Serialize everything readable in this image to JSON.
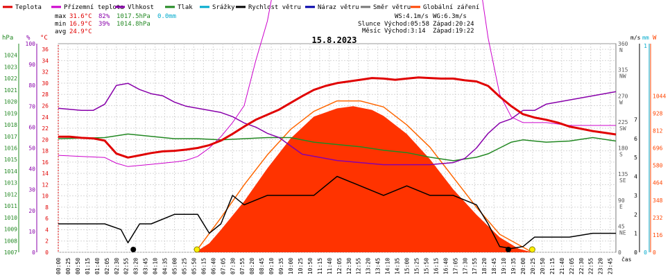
{
  "chart_data": {
    "type": "line",
    "title": "15.8.2023",
    "legend": [
      {
        "name": "Teplota",
        "color": "#e00000"
      },
      {
        "name": "Přízemní teplota",
        "color": "#cc00cc"
      },
      {
        "name": "Vlhkost",
        "color": "#8800aa"
      },
      {
        "name": "Tlak",
        "color": "#228822"
      },
      {
        "name": "Srážky",
        "color": "#00aacc"
      },
      {
        "name": "Rychlost větru",
        "color": "#000000"
      },
      {
        "name": "Náraz větru",
        "color": "#0000aa"
      },
      {
        "name": "Směr větru",
        "color": "#777777"
      },
      {
        "name": "Globální záření",
        "color": "#ff4400"
      }
    ],
    "stats": {
      "max": {
        "label": "max",
        "temp": "31.6°C",
        "hum": "82%",
        "press": "1017.5hPa",
        "rain": "0.0mm"
      },
      "min": {
        "label": "min",
        "temp": "16.9°C",
        "hum": "39%",
        "press": "1014.8hPa"
      },
      "avg": {
        "label": "avg",
        "temp": "24.9°C"
      }
    },
    "info": {
      "ws": "WS:4.1m/s",
      "wg": "WG:6.3m/s",
      "sun_label": "Slunce",
      "sunrise": "Východ:05:58",
      "sunset": "Západ:20:24",
      "moon_label": "Měsíc",
      "moonrise": "Východ:3:14",
      "moonset": "Západ:19:22"
    },
    "axes": {
      "hpa": {
        "label": "hPa",
        "range": [
          1007,
          1025
        ],
        "ticks": [
          "1024",
          "1023",
          "1022",
          "1021",
          "1020",
          "1019",
          "1018",
          "1017",
          "1016",
          "1015",
          "1014",
          "1013",
          "1012",
          "1011",
          "1010",
          "1009",
          "1008",
          "1007"
        ]
      },
      "pct": {
        "label": "%",
        "range": [
          0,
          100
        ],
        "ticks": [
          "100",
          "90",
          "80",
          "70",
          "60",
          "50",
          "40",
          "30",
          "20",
          "10",
          "0"
        ]
      },
      "temp": {
        "label": "°C",
        "range": [
          0,
          37
        ],
        "ticks": [
          "36",
          "34",
          "32",
          "30",
          "28",
          "26",
          "24",
          "22",
          "20",
          "18",
          "16",
          "14",
          "12",
          "10",
          "8",
          "6",
          "4",
          "2",
          "0"
        ]
      },
      "dir": {
        "label": "",
        "range": [
          0,
          360
        ],
        "ticks": [
          "360",
          "N",
          "315",
          "NW",
          "270",
          "W",
          "225",
          "SW",
          "180",
          "S",
          "135",
          "SE",
          "90",
          "E",
          "45",
          "NE",
          "0"
        ]
      },
      "ms": {
        "label": "m/s",
        "range": [
          0,
          11
        ],
        "ticks": [
          "7",
          "6",
          "5",
          "4",
          "3",
          "2",
          "1",
          "0"
        ]
      },
      "mm": {
        "label": "mm",
        "ticks": [
          "1",
          "0"
        ]
      },
      "w": {
        "label": "W",
        "range": [
          0,
          1392
        ],
        "ticks": [
          "1044",
          "928",
          "812",
          "696",
          "580",
          "464",
          "348",
          "232",
          "116",
          "0"
        ]
      },
      "xlabel": "čas"
    },
    "x_ticks": [
      "00:00",
      "00:25",
      "00:50",
      "01:15",
      "01:40",
      "02:05",
      "02:30",
      "02:55",
      "03:20",
      "03:45",
      "04:10",
      "04:35",
      "05:00",
      "05:25",
      "05:50",
      "06:15",
      "06:40",
      "07:05",
      "07:30",
      "07:55",
      "08:20",
      "08:45",
      "09:10",
      "09:35",
      "10:00",
      "10:25",
      "10:50",
      "11:15",
      "11:40",
      "12:05",
      "12:30",
      "12:55",
      "13:20",
      "13:45",
      "14:10",
      "14:35",
      "15:00",
      "15:25",
      "15:50",
      "16:15",
      "16:40",
      "17:05",
      "17:30",
      "17:55",
      "18:20",
      "18:45",
      "19:10",
      "19:35",
      "20:00",
      "20:25",
      "20:50",
      "21:15",
      "21:40",
      "22:05",
      "22:30",
      "22:55",
      "23:20",
      "23:45"
    ],
    "series": {
      "temperature": {
        "x": [
          0,
          0.5,
          1,
          1.5,
          2,
          2.5,
          3,
          3.5,
          4,
          4.5,
          5,
          5.5,
          6,
          6.5,
          7,
          7.5,
          8,
          8.5,
          9,
          9.5,
          10,
          10.5,
          11,
          11.5,
          12,
          12.5,
          13,
          13.5,
          14,
          14.5,
          15,
          15.5,
          16,
          16.5,
          17,
          17.5,
          18,
          18.5,
          19,
          19.5,
          20,
          20.5,
          21,
          21.5,
          22,
          22.5,
          23,
          23.5,
          24
        ],
        "y": [
          20.5,
          20.5,
          20.3,
          20.2,
          19.8,
          17.5,
          16.8,
          17.2,
          17.6,
          17.9,
          18,
          18.2,
          18.5,
          19,
          19.8,
          21,
          22.3,
          23.5,
          24.4,
          25.3,
          26.5,
          27.7,
          28.8,
          29.5,
          30,
          30.3,
          30.6,
          30.9,
          30.8,
          30.6,
          30.8,
          31,
          30.9,
          30.8,
          30.8,
          30.5,
          30.3,
          29.5,
          27.6,
          25.9,
          24.5,
          23.9,
          23.5,
          23,
          22.3,
          21.9,
          21.5,
          21.2,
          20.9
        ]
      },
      "ground_temperature": {
        "x": [
          0,
          1,
          2,
          2.5,
          3,
          4,
          5,
          5.5,
          6,
          6.5,
          7,
          7.5,
          8,
          8.5,
          9,
          9.5,
          10,
          11,
          12,
          13,
          14,
          15,
          16,
          17,
          17.5,
          18,
          18.5,
          19,
          19.5,
          20,
          21,
          22,
          23,
          24
        ],
        "y": [
          17.2,
          17,
          16.8,
          15.8,
          15.2,
          15.6,
          16,
          16.3,
          17,
          18.5,
          20.5,
          23,
          26,
          34,
          41,
          52,
          65,
          72,
          75,
          75,
          74,
          74,
          74,
          73,
          65,
          52,
          38,
          28,
          24,
          23,
          23,
          22.5,
          22.5,
          22.5
        ]
      },
      "humidity": {
        "x": [
          0,
          1,
          1.5,
          2,
          2.5,
          3,
          3.5,
          4,
          4.5,
          5,
          5.5,
          6,
          6.5,
          7,
          7.5,
          8,
          8.5,
          9,
          9.5,
          10,
          10.5,
          11,
          12,
          13,
          14,
          15,
          16,
          17,
          17.5,
          18,
          18.5,
          19,
          19.5,
          20,
          20.5,
          21,
          22,
          23,
          24
        ],
        "y": [
          69,
          68,
          68,
          71,
          80,
          81,
          78,
          76,
          75,
          72,
          70,
          69,
          68,
          67,
          65,
          62,
          60,
          57,
          55,
          51,
          47,
          46,
          44,
          43,
          42,
          42,
          42,
          43,
          45,
          50,
          57,
          62,
          64,
          68,
          68,
          71,
          73,
          75,
          77
        ]
      },
      "pressure": {
        "x": [
          0,
          2,
          3,
          4,
          5,
          6,
          7,
          8,
          9,
          10,
          11,
          12,
          13,
          14,
          15,
          16,
          17,
          18,
          18.5,
          19,
          19.5,
          20,
          20.5,
          21,
          22,
          23,
          24
        ],
        "y": [
          1016.8,
          1016.9,
          1017.2,
          1017,
          1016.8,
          1016.8,
          1016.7,
          1016.8,
          1016.9,
          1016.9,
          1016.5,
          1016.3,
          1016.1,
          1015.8,
          1015.6,
          1015.2,
          1014.9,
          1015.2,
          1015.5,
          1016,
          1016.5,
          1016.7,
          1016.6,
          1016.5,
          1016.6,
          1016.9,
          1016.6
        ]
      },
      "wind_speed": {
        "x": [
          0,
          2,
          2.7,
          3,
          3.5,
          4,
          5,
          6,
          6.5,
          7,
          7.5,
          8,
          9,
          10,
          11,
          12,
          13,
          14,
          15,
          16,
          17,
          18,
          18.5,
          19,
          19.5,
          20,
          20.5,
          21,
          22,
          23,
          24
        ],
        "y": [
          1.5,
          1.5,
          1.2,
          0.5,
          1.5,
          1.5,
          2,
          2,
          1,
          1.5,
          3,
          2.5,
          3,
          3,
          3,
          4,
          3.5,
          3,
          3.5,
          3,
          3,
          2.5,
          1.5,
          0.3,
          0.2,
          0.3,
          0.8,
          0.8,
          0.8,
          1,
          1
        ]
      },
      "radiation": {
        "x": [
          5.9,
          6.5,
          7,
          8,
          9,
          10,
          11,
          12,
          12.7,
          13.5,
          14,
          15,
          16,
          17,
          18,
          19,
          19.8,
          20.4
        ],
        "y": [
          0,
          60,
          150,
          340,
          560,
          760,
          905,
          960,
          975,
          950,
          910,
          790,
          620,
          420,
          250,
          100,
          25,
          0
        ]
      },
      "radiation_theoretical": {
        "x": [
          5.9,
          7,
          8,
          9,
          10,
          11,
          12,
          13,
          14,
          15,
          16,
          17,
          18,
          19,
          20.4
        ],
        "y": [
          0,
          230,
          450,
          650,
          820,
          940,
          1010,
          1010,
          970,
          850,
          700,
          500,
          300,
          120,
          0
        ]
      }
    }
  }
}
